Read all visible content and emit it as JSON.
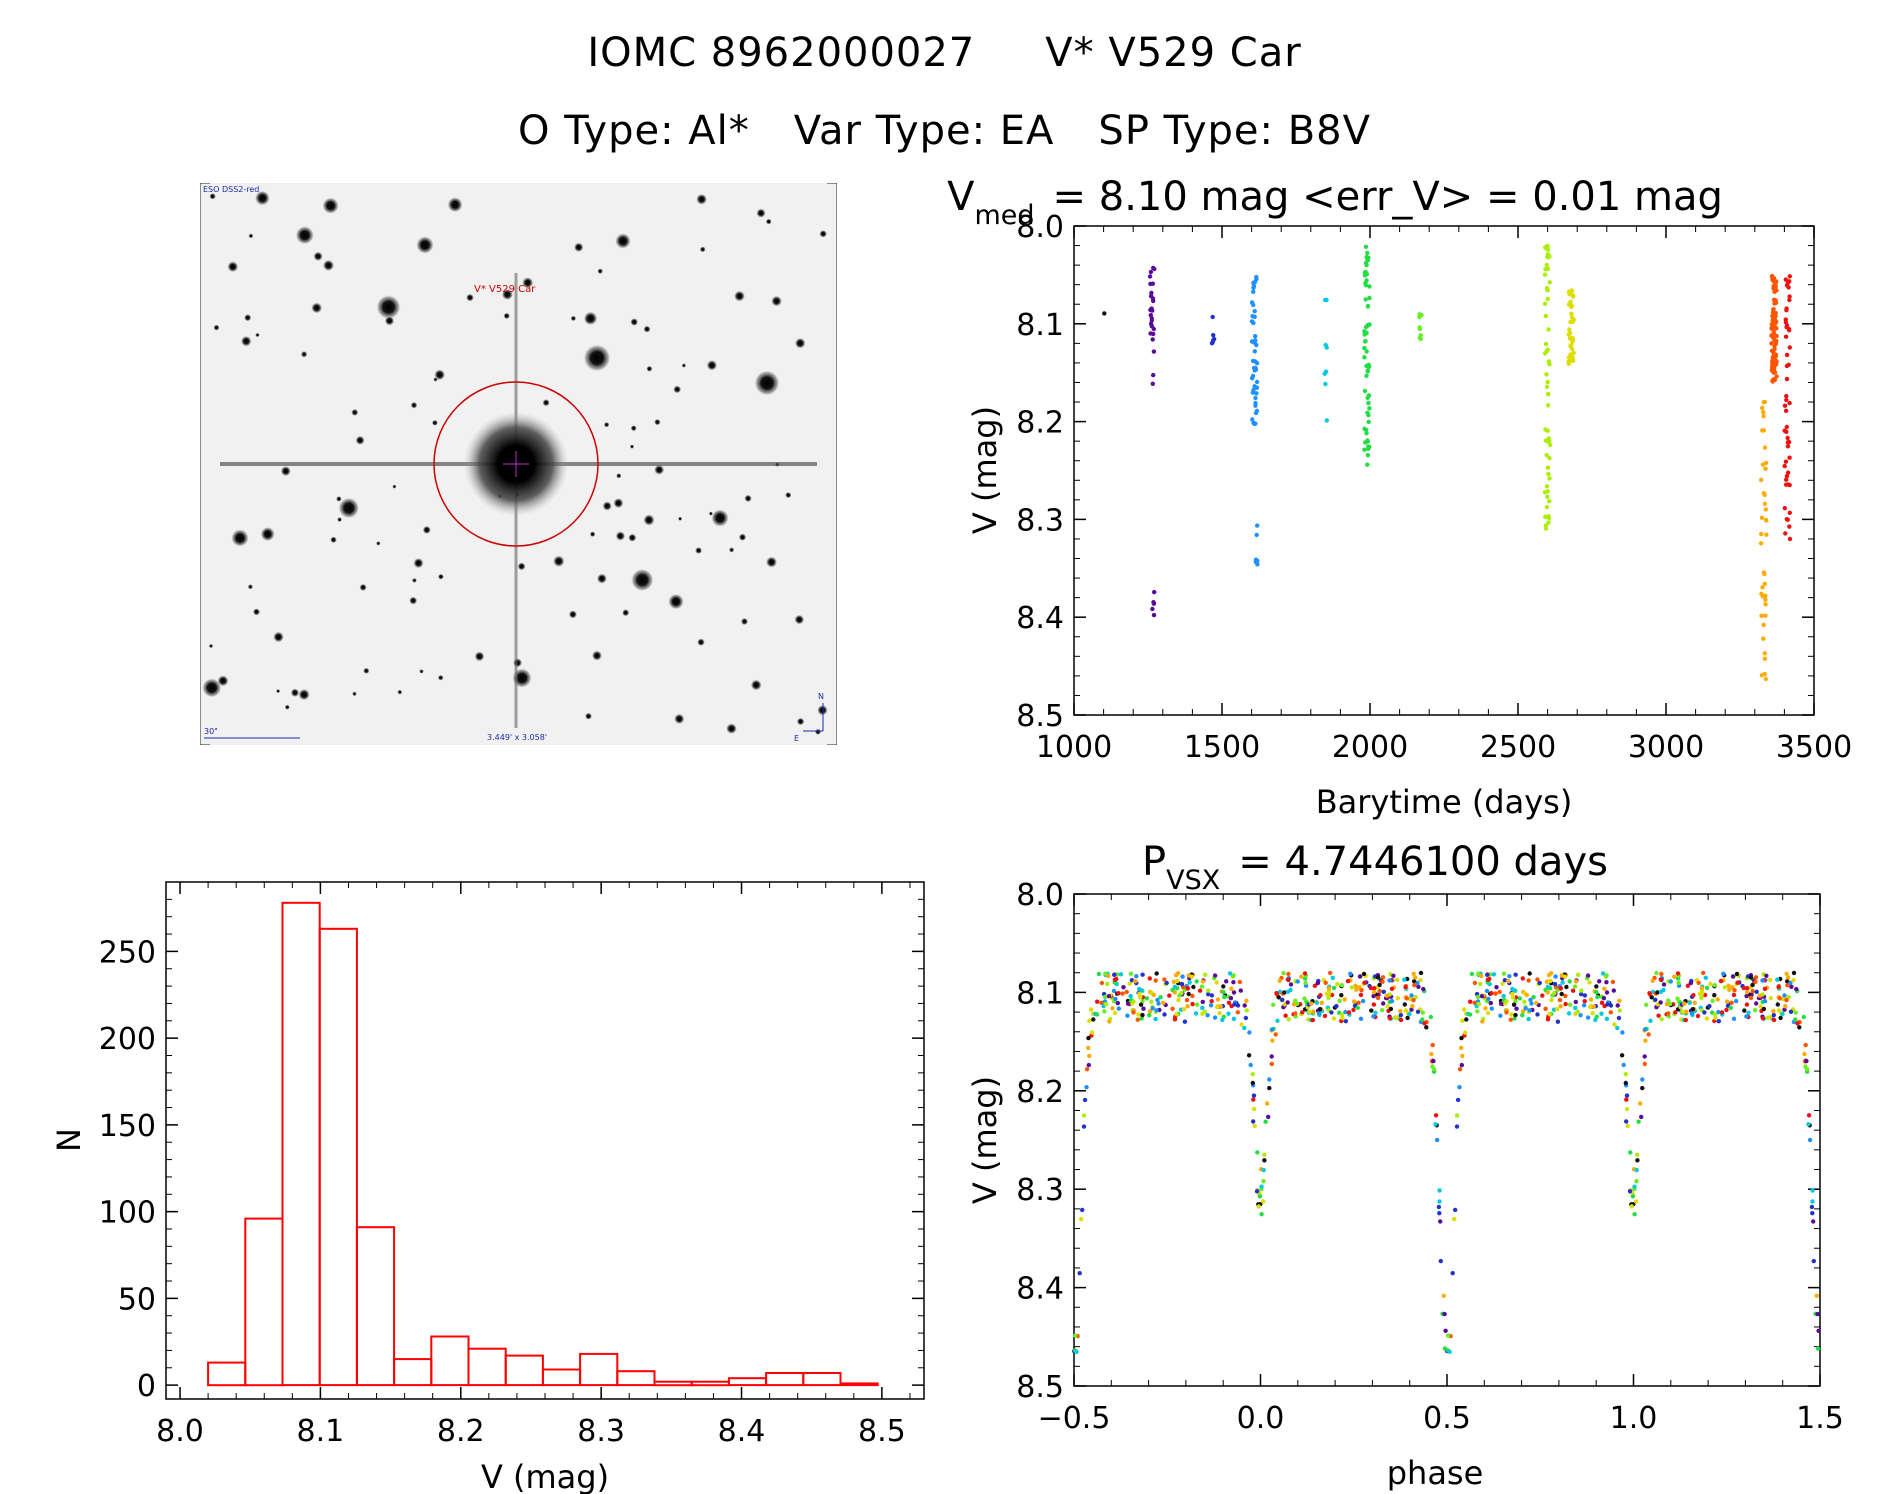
{
  "header": {
    "object_id": "IOMC 8962000027",
    "star_name": "V* V529 Car",
    "otype": "O Type: Al*",
    "vartype": "Var Type: EA",
    "sptype": "SP Type: B8V"
  },
  "sky_image": {
    "survey": "ESO DSS2-red",
    "target_label": "V* V529 Car",
    "scale_label": "30\"",
    "fov_label": "3.449' x 3.058'",
    "north": "N",
    "east": "E"
  },
  "colors": {
    "histogram": "#ff0000",
    "axes": "#000000",
    "circle": "#cc0000"
  },
  "chart_data": [
    {
      "type": "scatter",
      "title_main": "V",
      "title_sub": "med",
      "title_rest": "= 8.10 mag <err_V> = 0.01 mag",
      "xlabel": "Barytime (days)",
      "ylabel": "V (mag)",
      "xlim": [
        1000,
        3500
      ],
      "ylim": [
        8.5,
        8.0
      ],
      "y_reversed": true,
      "xticks": [
        "1000",
        "1500",
        "2000",
        "2500",
        "3000",
        "3500"
      ],
      "yticks": [
        "8.0",
        "8.1",
        "8.2",
        "8.3",
        "8.4",
        "8.5"
      ],
      "seasons": [
        {
          "x": 1100,
          "color": "#111111",
          "n": 1,
          "ymin": 8.085,
          "ymax": 8.09
        },
        {
          "x": 1265,
          "color": "#5a0a9a",
          "n": 25,
          "ymin": 8.03,
          "ymax": 8.17
        },
        {
          "x": 1268,
          "color": "#5a0a9a",
          "n": 5,
          "ymin": 8.33,
          "ymax": 8.42
        },
        {
          "x": 1470,
          "color": "#2233cc",
          "n": 6,
          "ymin": 8.09,
          "ymax": 8.12
        },
        {
          "x": 1610,
          "color": "#1e90ff",
          "n": 45,
          "ymin": 8.05,
          "ymax": 8.205
        },
        {
          "x": 1618,
          "color": "#1e90ff",
          "n": 6,
          "ymin": 8.3,
          "ymax": 8.355
        },
        {
          "x": 1850,
          "color": "#00c8e0",
          "n": 8,
          "ymin": 8.05,
          "ymax": 8.21
        },
        {
          "x": 1990,
          "color": "#22dd44",
          "n": 60,
          "ymin": 8.02,
          "ymax": 8.245
        },
        {
          "x": 2170,
          "color": "#66ee22",
          "n": 8,
          "ymin": 8.09,
          "ymax": 8.125
        },
        {
          "x": 2600,
          "color": "#aaee00",
          "n": 60,
          "ymin": 8.02,
          "ymax": 8.315
        },
        {
          "x": 2680,
          "color": "#dddd00",
          "n": 40,
          "ymin": 8.06,
          "ymax": 8.145
        },
        {
          "x": 3330,
          "color": "#ffaa00",
          "n": 40,
          "ymin": 8.18,
          "ymax": 8.475
        },
        {
          "x": 3365,
          "color": "#ff5500",
          "n": 90,
          "ymin": 8.05,
          "ymax": 8.16
        },
        {
          "x": 3410,
          "color": "#ee1111",
          "n": 50,
          "ymin": 8.05,
          "ymax": 8.32
        }
      ]
    },
    {
      "type": "bar",
      "xlabel": "V (mag)",
      "ylabel": "N",
      "xlim": [
        7.99,
        8.53
      ],
      "ylim": [
        -8,
        290
      ],
      "xticks": [
        "8.0",
        "8.1",
        "8.2",
        "8.3",
        "8.4",
        "8.5"
      ],
      "yticks": [
        "0",
        "50",
        "100",
        "150",
        "200",
        "250"
      ],
      "bin_start": 8.02,
      "bin_width": 0.0265,
      "values": [
        13,
        96,
        278,
        263,
        91,
        15,
        28,
        21,
        17,
        9,
        18,
        8,
        2,
        2,
        4,
        7,
        7,
        1
      ]
    },
    {
      "type": "scatter",
      "title_main": "P",
      "title_sub": "VSX",
      "title_rest": "= 4.7446100 days",
      "xlabel": "phase",
      "ylabel": "V (mag)",
      "xlim": [
        -0.5,
        1.5
      ],
      "ylim": [
        8.5,
        8.0
      ],
      "y_reversed": true,
      "period_days": 4.74461,
      "xticks": [
        "−0.5",
        "0.0",
        "0.5",
        "1.0",
        "1.5"
      ],
      "yticks": [
        "8.0",
        "8.1",
        "8.2",
        "8.3",
        "8.4",
        "8.5"
      ],
      "series_colors": [
        "#111111",
        "#5a0a9a",
        "#2233cc",
        "#1e90ff",
        "#00c8e0",
        "#22dd44",
        "#66ee22",
        "#aaee00",
        "#dddd00",
        "#ffaa00",
        "#ff5500",
        "#ee1111"
      ]
    }
  ]
}
